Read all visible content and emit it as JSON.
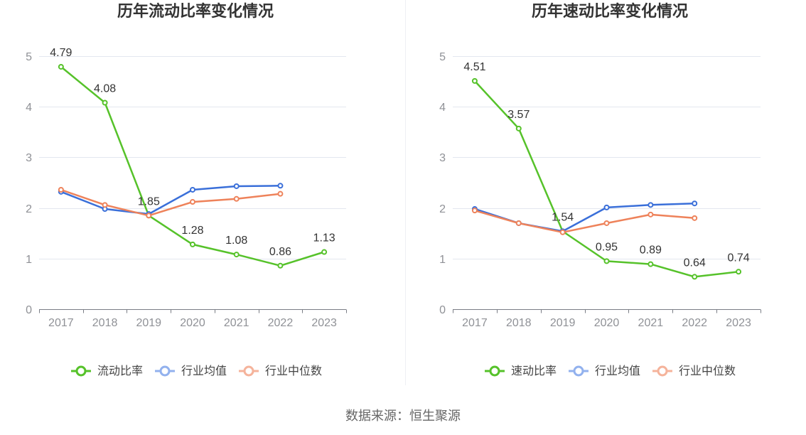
{
  "colors": {
    "gridline": "#e3e7ef",
    "axis": "#7a7d85",
    "tick_text": "#8f9196",
    "title": "#333333"
  },
  "chart_data": [
    {
      "type": "line",
      "title": "历年流动比率变化情况",
      "categories": [
        "2017",
        "2018",
        "2019",
        "2020",
        "2021",
        "2022",
        "2023"
      ],
      "ylim": [
        0,
        5
      ],
      "yticks": [
        0,
        1,
        2,
        3,
        4,
        5
      ],
      "grid": true,
      "legend_position": "bottom",
      "series": [
        {
          "name": "流动比率",
          "color": "#56c22a",
          "legend_color": "#56c22a",
          "data_labels": true,
          "values": [
            4.79,
            4.08,
            1.85,
            1.28,
            1.08,
            0.86,
            1.13
          ]
        },
        {
          "name": "行业均值",
          "color": "#3a6fd9",
          "legend_color": "#92b1ee",
          "values": [
            2.32,
            1.98,
            1.88,
            2.36,
            2.43,
            2.44,
            null
          ]
        },
        {
          "name": "行业中位数",
          "color": "#ee825a",
          "legend_color": "#f5b39b",
          "values": [
            2.36,
            2.06,
            1.85,
            2.12,
            2.18,
            2.28,
            null
          ]
        }
      ]
    },
    {
      "type": "line",
      "title": "历年速动比率变化情况",
      "categories": [
        "2017",
        "2018",
        "2019",
        "2020",
        "2021",
        "2022",
        "2023"
      ],
      "ylim": [
        0,
        5
      ],
      "yticks": [
        0,
        1,
        2,
        3,
        4,
        5
      ],
      "grid": true,
      "legend_position": "bottom",
      "series": [
        {
          "name": "速动比率",
          "color": "#56c22a",
          "legend_color": "#56c22a",
          "data_labels": true,
          "values": [
            4.51,
            3.57,
            1.54,
            0.95,
            0.89,
            0.64,
            0.74
          ]
        },
        {
          "name": "行业均值",
          "color": "#3a6fd9",
          "legend_color": "#92b1ee",
          "values": [
            1.98,
            1.7,
            1.54,
            2.01,
            2.06,
            2.09,
            null
          ]
        },
        {
          "name": "行业中位数",
          "color": "#ee825a",
          "legend_color": "#f5b39b",
          "values": [
            1.95,
            1.7,
            1.52,
            1.7,
            1.87,
            1.8,
            null
          ]
        }
      ]
    }
  ],
  "footer": {
    "source": "数据来源：恒生聚源"
  }
}
